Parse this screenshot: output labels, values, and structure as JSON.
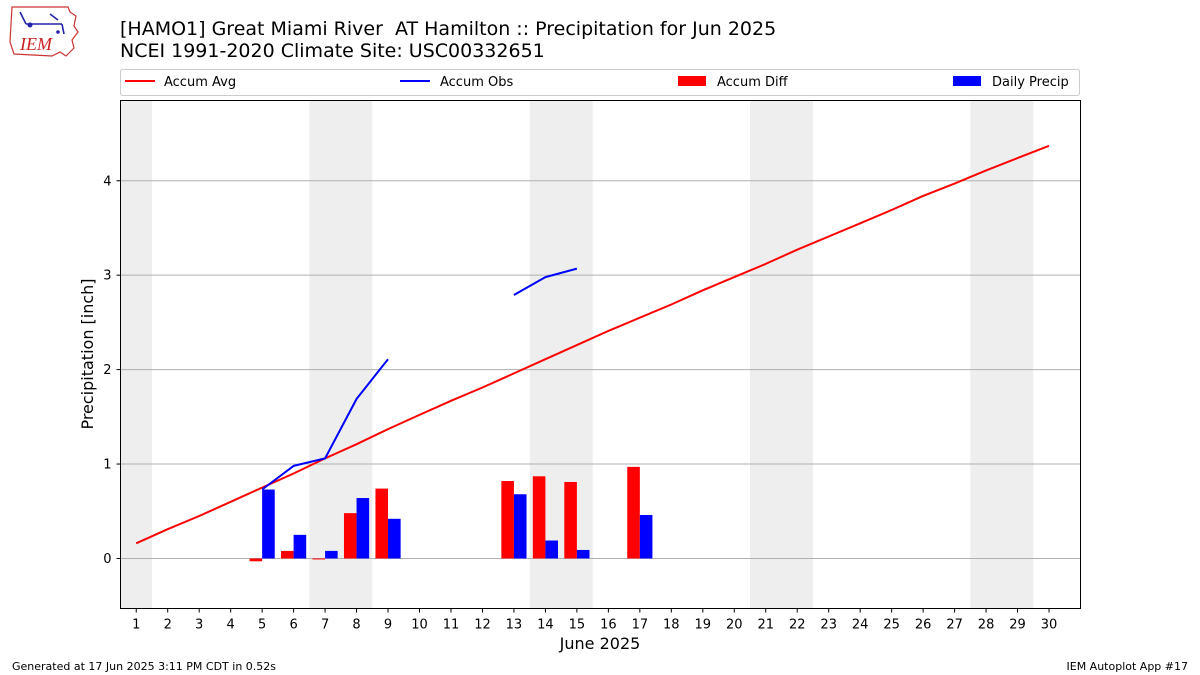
{
  "header": {
    "title": "[HAMO1] Great Miami River  AT Hamilton :: Precipitation for Jun 2025",
    "subtitle": "NCEI 1991-2020 Climate Site: USC00332651",
    "logo_text": "IEM"
  },
  "footer": {
    "generated": "Generated at 17 Jun 2025 3:11 PM CDT in 0.52s",
    "app": "IEM Autoplot App #17"
  },
  "chart_data": {
    "type": "bar",
    "xlabel": "June 2025",
    "ylabel": "Precipitation [inch]",
    "xlim": [
      0.5,
      31.0
    ],
    "ylim": [
      -0.53,
      4.85
    ],
    "x_ticks": [
      1,
      2,
      3,
      4,
      5,
      6,
      7,
      8,
      9,
      10,
      11,
      12,
      13,
      14,
      15,
      16,
      17,
      18,
      19,
      20,
      21,
      22,
      23,
      24,
      25,
      26,
      27,
      28,
      29,
      30
    ],
    "y_ticks": [
      0,
      1,
      2,
      3,
      4
    ],
    "grid": "horizontal",
    "legend_placement": "top, above plot",
    "weekend_shading": [
      [
        0.5,
        1.5
      ],
      [
        6.5,
        8.5
      ],
      [
        13.5,
        15.5
      ],
      [
        20.5,
        22.5
      ],
      [
        27.5,
        29.5
      ]
    ],
    "colors": {
      "accum_avg": "#ff0000",
      "accum_obs": "#0000ff",
      "accum_diff": "#ff0000",
      "daily_precip": "#0000ff",
      "weekend": "#eeeeee",
      "grid": "#b0b0b0"
    },
    "legend": [
      "Accum Avg",
      "Accum Obs",
      "Accum Diff",
      "Daily Precip"
    ],
    "series": [
      {
        "name": "Accum Avg",
        "kind": "line",
        "x": [
          1,
          2,
          3,
          4,
          5,
          6,
          7,
          8,
          9,
          10,
          11,
          12,
          13,
          14,
          15,
          16,
          17,
          18,
          19,
          20,
          21,
          22,
          23,
          24,
          25,
          26,
          27,
          28,
          29,
          30
        ],
        "values": [
          0.16,
          0.31,
          0.45,
          0.6,
          0.75,
          0.9,
          1.06,
          1.21,
          1.37,
          1.52,
          1.67,
          1.81,
          1.96,
          2.11,
          2.26,
          2.41,
          2.55,
          2.69,
          2.84,
          2.98,
          3.12,
          3.27,
          3.41,
          3.55,
          3.69,
          3.84,
          3.97,
          4.11,
          4.24,
          4.37
        ]
      },
      {
        "name": "Accum Obs",
        "kind": "line",
        "segments": [
          {
            "x": [
              5,
              6,
              7,
              8,
              9
            ],
            "values": [
              0.73,
              0.98,
              1.06,
              1.69,
              2.11
            ]
          },
          {
            "x": [
              13,
              14,
              15
            ],
            "values": [
              2.79,
              2.98,
              3.07
            ]
          }
        ]
      },
      {
        "name": "Accum Diff",
        "kind": "bar",
        "x": [
          5,
          6,
          7,
          8,
          9,
          13,
          14,
          15,
          17
        ],
        "values": [
          -0.03,
          0.08,
          -0.01,
          0.48,
          0.74,
          0.82,
          0.87,
          0.81,
          0.97
        ]
      },
      {
        "name": "Daily Precip",
        "kind": "bar",
        "x": [
          5,
          6,
          7,
          8,
          9,
          13,
          14,
          15,
          17
        ],
        "values": [
          0.73,
          0.25,
          0.08,
          0.64,
          0.42,
          0.68,
          0.19,
          0.09,
          0.46
        ]
      }
    ]
  }
}
